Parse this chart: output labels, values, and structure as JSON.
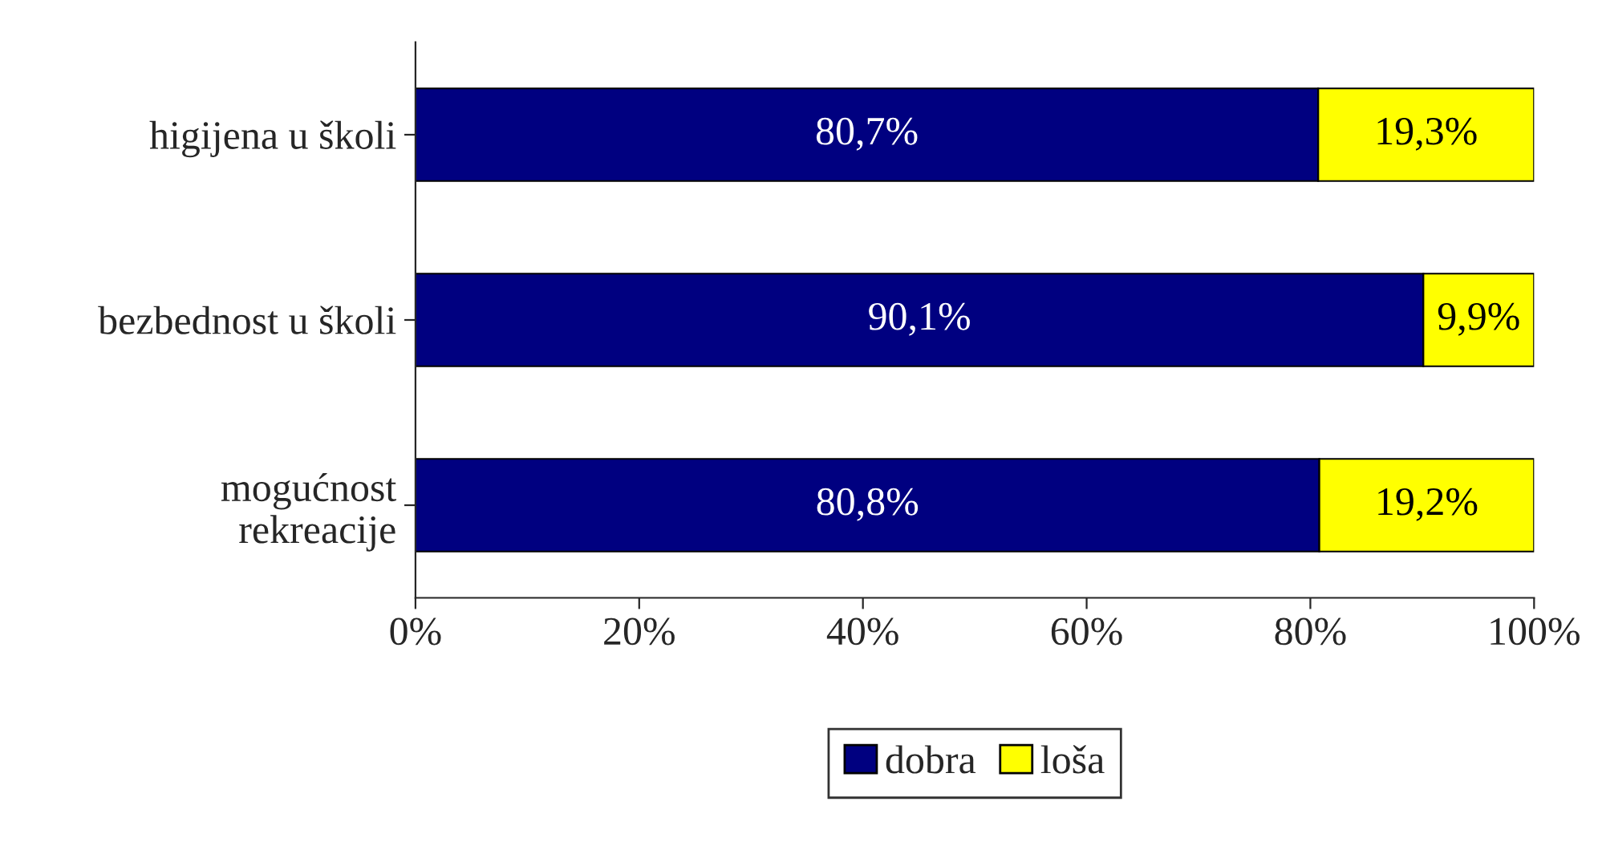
{
  "chart_data": {
    "type": "bar",
    "orientation": "horizontal",
    "stacked": true,
    "categories": [
      "higijena u školi",
      "bezbednost u školi",
      "mogućnost\nrekreacije"
    ],
    "series": [
      {
        "name": "dobra",
        "color": "#000080",
        "values": [
          80.7,
          90.1,
          80.8
        ],
        "value_labels": [
          "80,7%",
          "90,1%",
          "80,8%"
        ]
      },
      {
        "name": "loša",
        "color": "#ffff00",
        "values": [
          19.3,
          9.9,
          19.2
        ],
        "value_labels": [
          "19,3%",
          "9,9%",
          "19,2%"
        ]
      }
    ],
    "xlim": [
      0,
      100
    ],
    "xticks": [
      {
        "value": 0,
        "label": "0%"
      },
      {
        "value": 20,
        "label": "20%"
      },
      {
        "value": 40,
        "label": "40%"
      },
      {
        "value": 60,
        "label": "60%"
      },
      {
        "value": 80,
        "label": "80%"
      },
      {
        "value": 100,
        "label": "100%"
      }
    ],
    "grid": false,
    "legend": "bottom"
  }
}
